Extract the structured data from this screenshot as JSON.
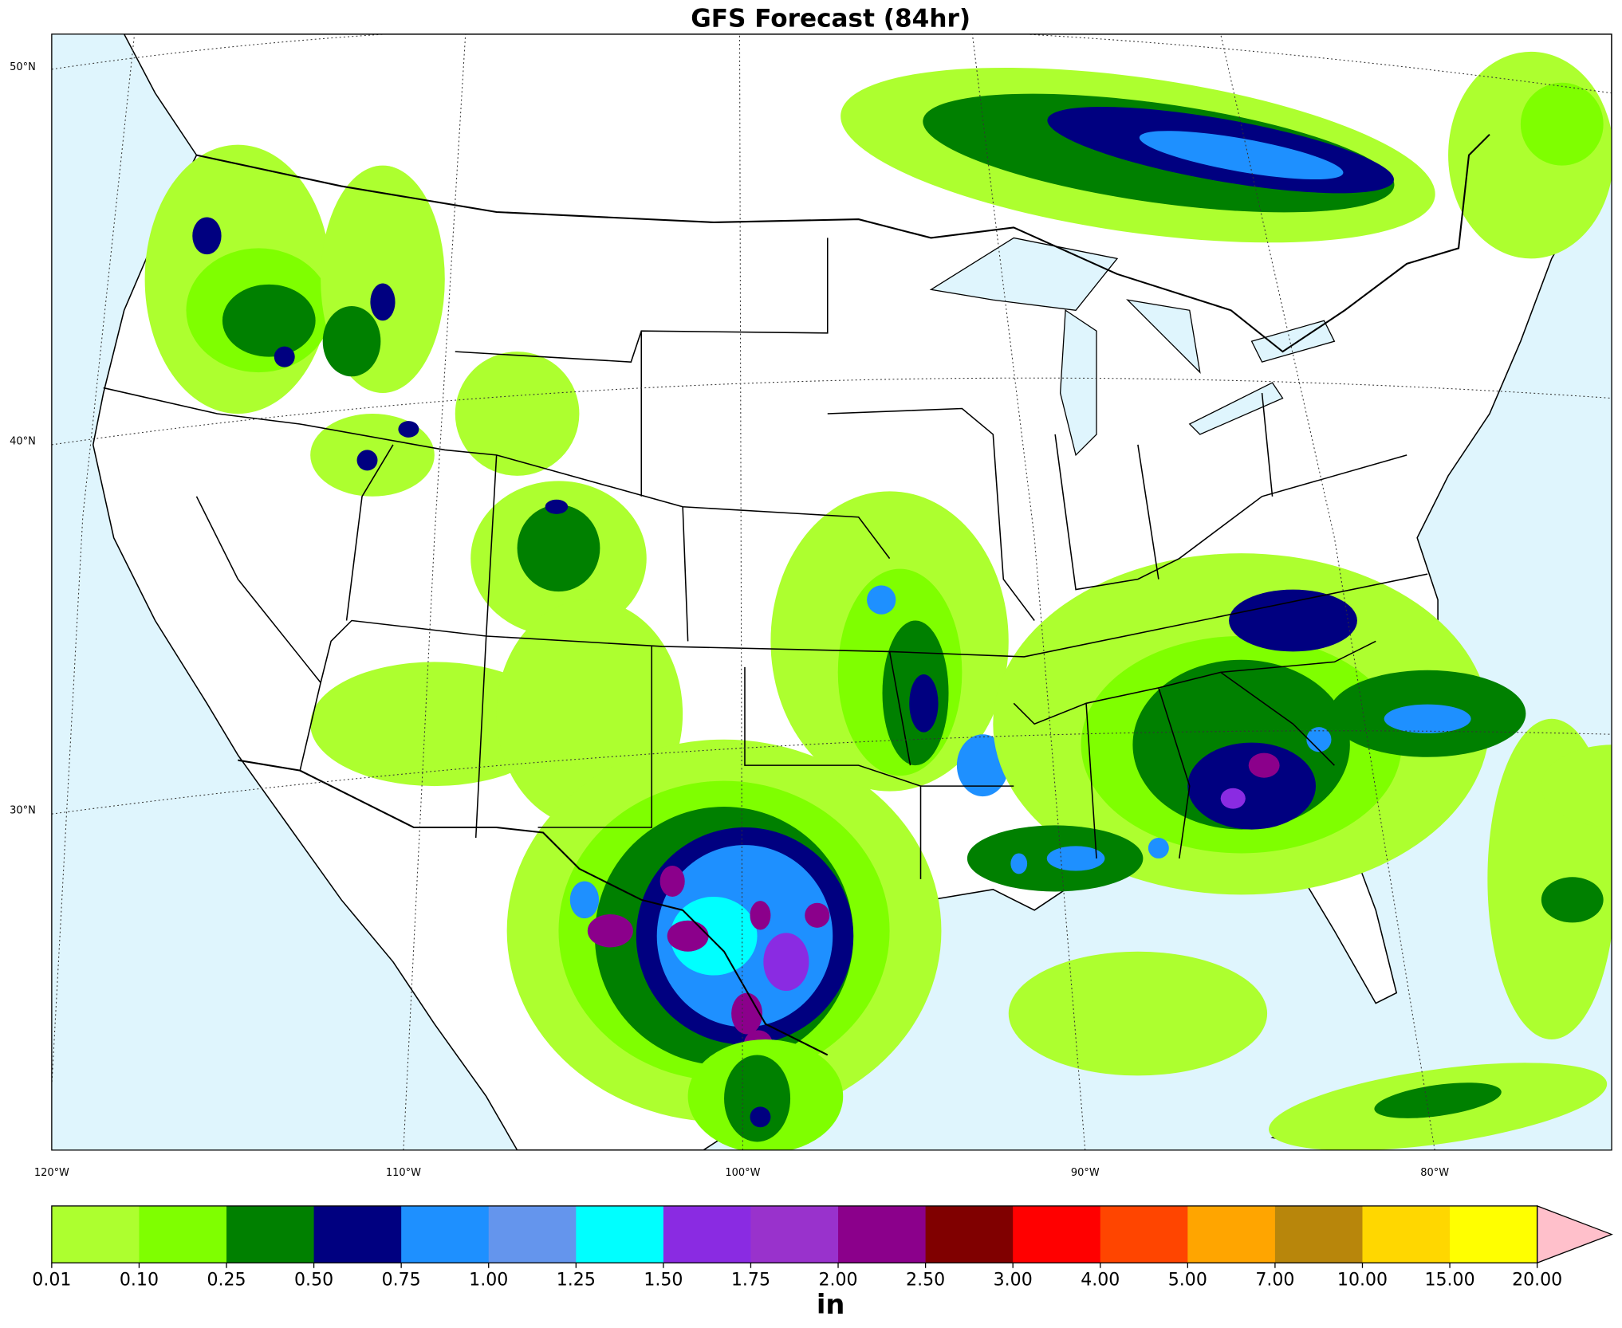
{
  "title": "GFS Forecast (84hr)",
  "map": {
    "lat_labels": [
      "50°N",
      "40°N",
      "30°N"
    ],
    "lon_labels": [
      "120°W",
      "110°W",
      "100°W",
      "90°W",
      "80°W"
    ]
  },
  "colorbar": {
    "ticks": [
      0.01,
      {
        "value": 0.1,
        "label": "0.10"
      },
      0.25,
      {
        "value": 0.5,
        "label": "0.50"
      },
      0.75,
      {
        "value": 1,
        "label": "1.00"
      },
      1.25,
      {
        "value": 1.5,
        "label": "1.50"
      },
      1.75,
      {
        "value": 2,
        "label": "2.00"
      },
      {
        "value": 2.5,
        "label": "2.50"
      },
      {
        "value": 3,
        "label": "3.00"
      },
      {
        "value": 4,
        "label": "4.00"
      },
      {
        "value": 5,
        "label": "5.00"
      },
      {
        "value": 7,
        "label": "7.00"
      },
      {
        "value": 10,
        "label": "10.00"
      },
      {
        "value": 15,
        "label": "15.00"
      },
      {
        "value": 20,
        "label": "20.00"
      }
    ],
    "colors": [
      "#adff2f",
      "#7fff00",
      "#008000",
      "#000080",
      "#1e90ff",
      "#6495ed",
      "#00ffff",
      "#8a2be2",
      "#9932cc",
      "#8b008b",
      "#800000",
      "#ff0000",
      "#ff4500",
      "#ffa500",
      "#b8860b",
      "#ffd700",
      "#ffff00"
    ],
    "extend_color": "#ffc0cb",
    "unit": "in"
  }
}
